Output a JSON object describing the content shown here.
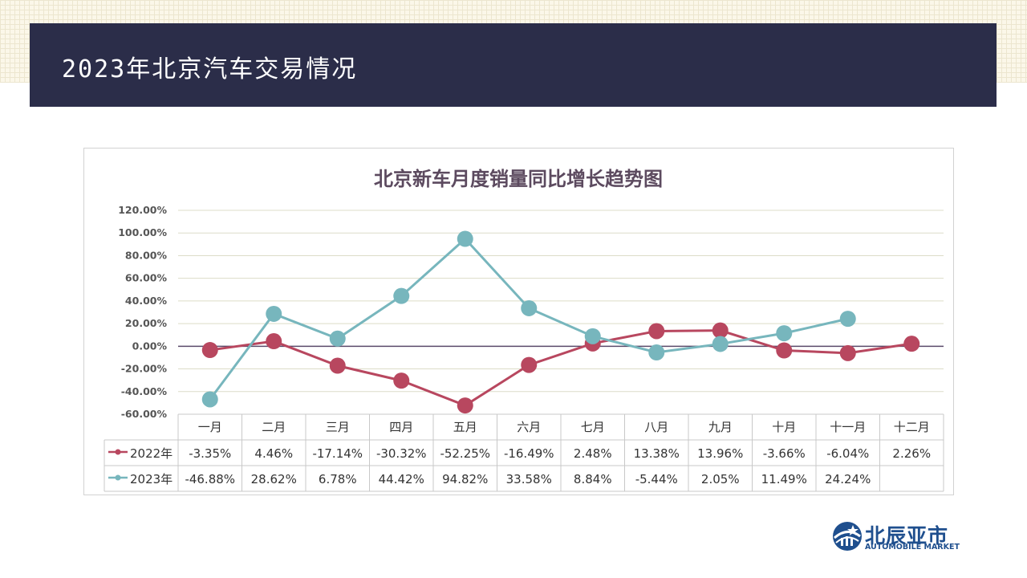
{
  "header": {
    "title": "2023年北京汽车交易情况"
  },
  "logo": {
    "name_cn": "北辰亚市",
    "name_en": "AUTOMOBILE MARKET"
  },
  "colors": {
    "series_2022": "#b8475f",
    "series_2023": "#77b6bd",
    "header_bg": "#2b2d49",
    "zero_line": "#5a4a6a"
  },
  "chart_data": {
    "type": "line",
    "title": "北京新车月度销量同比增长趋势图",
    "categories": [
      "一月",
      "二月",
      "三月",
      "四月",
      "五月",
      "六月",
      "七月",
      "八月",
      "九月",
      "十月",
      "十一月",
      "十二月"
    ],
    "ylim": [
      -60,
      120
    ],
    "yticks": [
      "120.00%",
      "100.00%",
      "80.00%",
      "60.00%",
      "40.00%",
      "20.00%",
      "0.00%",
      "-20.00%",
      "-40.00%",
      "-60.00%"
    ],
    "ytick_values": [
      120,
      100,
      80,
      60,
      40,
      20,
      0,
      -20,
      -40,
      -60
    ],
    "grid": true,
    "legend": "data-table",
    "series": [
      {
        "name": "2022年",
        "values": [
          -3.35,
          4.46,
          -17.14,
          -30.32,
          -52.25,
          -16.49,
          2.48,
          13.38,
          13.96,
          -3.66,
          -6.04,
          2.26
        ],
        "labels": [
          "-3.35%",
          "4.46%",
          "-17.14%",
          "-30.32%",
          "-52.25%",
          "-16.49%",
          "2.48%",
          "13.38%",
          "13.96%",
          "-3.66%",
          "-6.04%",
          "2.26%"
        ]
      },
      {
        "name": "2023年",
        "values": [
          -46.88,
          28.62,
          6.78,
          44.42,
          94.82,
          33.58,
          8.84,
          -5.44,
          2.05,
          11.49,
          24.24,
          null
        ],
        "labels": [
          "-46.88%",
          "28.62%",
          "6.78%",
          "44.42%",
          "94.82%",
          "33.58%",
          "8.84%",
          "-5.44%",
          "2.05%",
          "11.49%",
          "24.24%",
          ""
        ]
      }
    ]
  }
}
